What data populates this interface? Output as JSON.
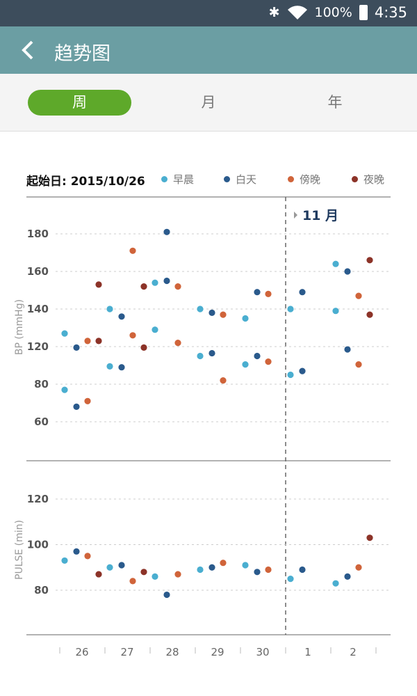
{
  "status_bar": {
    "battery": "100%",
    "time": "4:35",
    "icons": [
      "bluetooth-icon",
      "wifi-icon",
      "battery-icon"
    ]
  },
  "app_bar": {
    "title": "趋势图",
    "back_icon": "chevron-left-icon"
  },
  "tabs": [
    {
      "label": "周",
      "active": true
    },
    {
      "label": "月",
      "active": false
    },
    {
      "label": "年",
      "active": false
    }
  ],
  "legend": {
    "start_label": "起始日: 2015/10/26"
  },
  "chart_data": {
    "type": "scatter",
    "days": [
      "26",
      "27",
      "28",
      "29",
      "30",
      "1",
      "2"
    ],
    "month_marker": "11 月",
    "series": [
      {
        "name": "早晨",
        "color": "#4aaed0",
        "bp": [
          [
            127,
            77
          ],
          [
            140,
            99
          ],
          [
            154,
            129
          ],
          [
            140,
            110
          ],
          [
            135,
            101
          ],
          [
            140,
            90
          ],
          [
            164,
            139
          ]
        ],
        "pulse": [
          [
            93
          ],
          [
            90
          ],
          [
            86
          ],
          [
            89
          ],
          [
            91
          ],
          [
            85
          ],
          [
            83
          ]
        ]
      },
      {
        "name": "白天",
        "color": "#2a5a8c",
        "bp": [
          [
            119,
            68
          ],
          [
            136,
            98
          ],
          [
            181,
            155
          ],
          [
            138,
            113
          ],
          [
            149,
            110
          ],
          [
            149,
            94
          ],
          [
            160,
            117
          ]
        ],
        "pulse": [
          [
            97
          ],
          [
            91
          ],
          [
            78
          ],
          [
            90
          ],
          [
            88
          ],
          [
            89
          ],
          [
            86
          ]
        ]
      },
      {
        "name": "傍晚",
        "color": "#d0643a",
        "bp": [
          [
            123,
            71
          ],
          [
            171,
            126
          ],
          [
            152,
            122
          ],
          [
            137,
            84
          ],
          [
            148,
            104
          ],
          [],
          [
            147,
            101
          ]
        ],
        "pulse": [
          [
            95
          ],
          [
            84
          ],
          [
            87
          ],
          [
            92
          ],
          [
            89
          ],
          [],
          [
            90
          ]
        ]
      },
      {
        "name": "夜晚",
        "color": "#8c3328",
        "bp": [
          [
            153,
            123
          ],
          [
            152,
            119
          ],
          [],
          [],
          [],
          [],
          [
            166,
            137
          ]
        ],
        "pulse": [
          [
            87
          ],
          [
            88
          ],
          [],
          [],
          [],
          [],
          [
            103
          ]
        ]
      }
    ],
    "bp_axis": {
      "label": "BP  (mmHg)",
      "ticks": [
        "180",
        "160",
        "140",
        "120",
        "80",
        "60"
      ]
    },
    "pulse_axis": {
      "label": "PULSE  (min)",
      "ticks": [
        "120",
        "100",
        "80"
      ]
    },
    "grid": true,
    "legend_placement": "top"
  }
}
